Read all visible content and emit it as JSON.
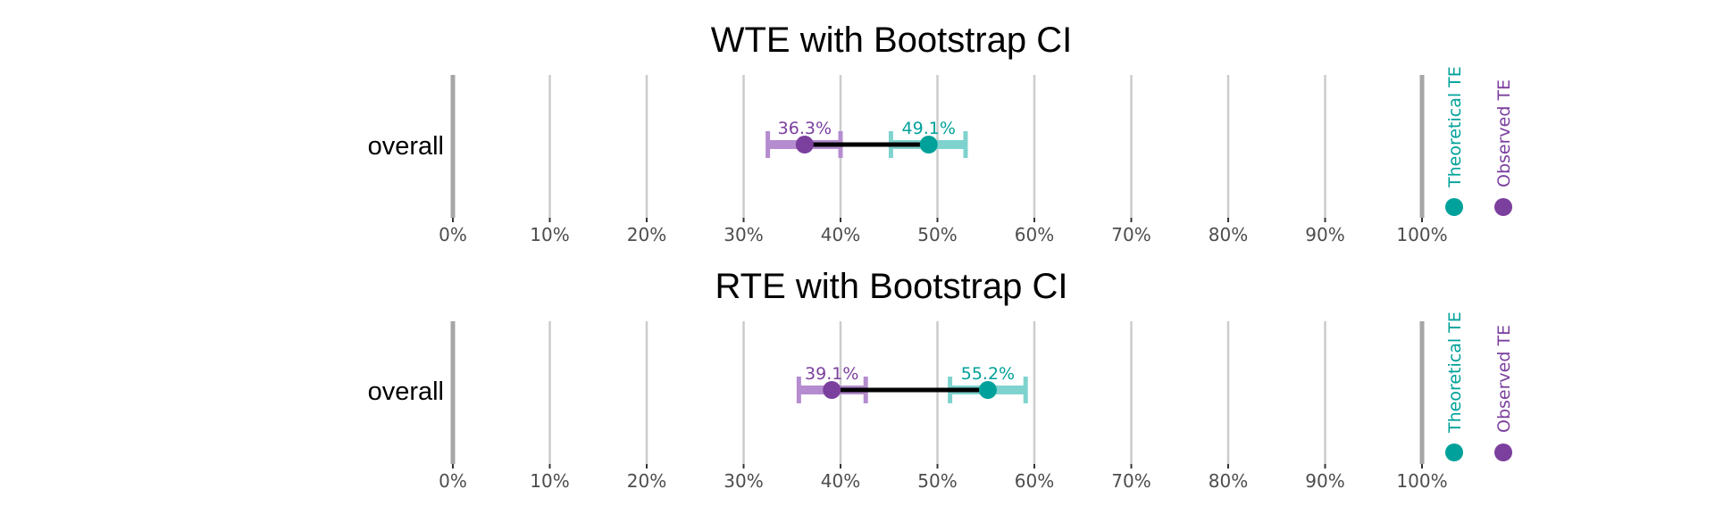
{
  "colors": {
    "observed": "#7b3f9e",
    "observed_ci": "#b58ccf",
    "theoretical": "#00a19a",
    "theoretical_ci": "#7fd3ce",
    "connector": "#000000",
    "grid": "#cccccc",
    "grid_major": "#a6a6a6"
  },
  "legend": {
    "theoretical": "Theoretical TE",
    "observed": "Observed TE"
  },
  "chart_data": [
    {
      "type": "dot-interval",
      "title": "WTE with Bootstrap CI",
      "categories": [
        "overall"
      ],
      "xlim": [
        0,
        100
      ],
      "xticks": [
        "0%",
        "10%",
        "20%",
        "30%",
        "40%",
        "50%",
        "60%",
        "70%",
        "80%",
        "90%",
        "100%"
      ],
      "observed": {
        "value": 36.3,
        "ci": [
          32.5,
          40.0
        ],
        "label": "36.3%"
      },
      "theoretical": {
        "value": 49.1,
        "ci": [
          45.2,
          52.9
        ],
        "label": "49.1%"
      }
    },
    {
      "type": "dot-interval",
      "title": "RTE with Bootstrap CI",
      "categories": [
        "overall"
      ],
      "xlim": [
        0,
        100
      ],
      "xticks": [
        "0%",
        "10%",
        "20%",
        "30%",
        "40%",
        "50%",
        "60%",
        "70%",
        "80%",
        "90%",
        "100%"
      ],
      "observed": {
        "value": 39.1,
        "ci": [
          35.7,
          42.6
        ],
        "label": "39.1%"
      },
      "theoretical": {
        "value": 55.2,
        "ci": [
          51.3,
          59.1
        ],
        "label": "55.2%"
      }
    }
  ]
}
